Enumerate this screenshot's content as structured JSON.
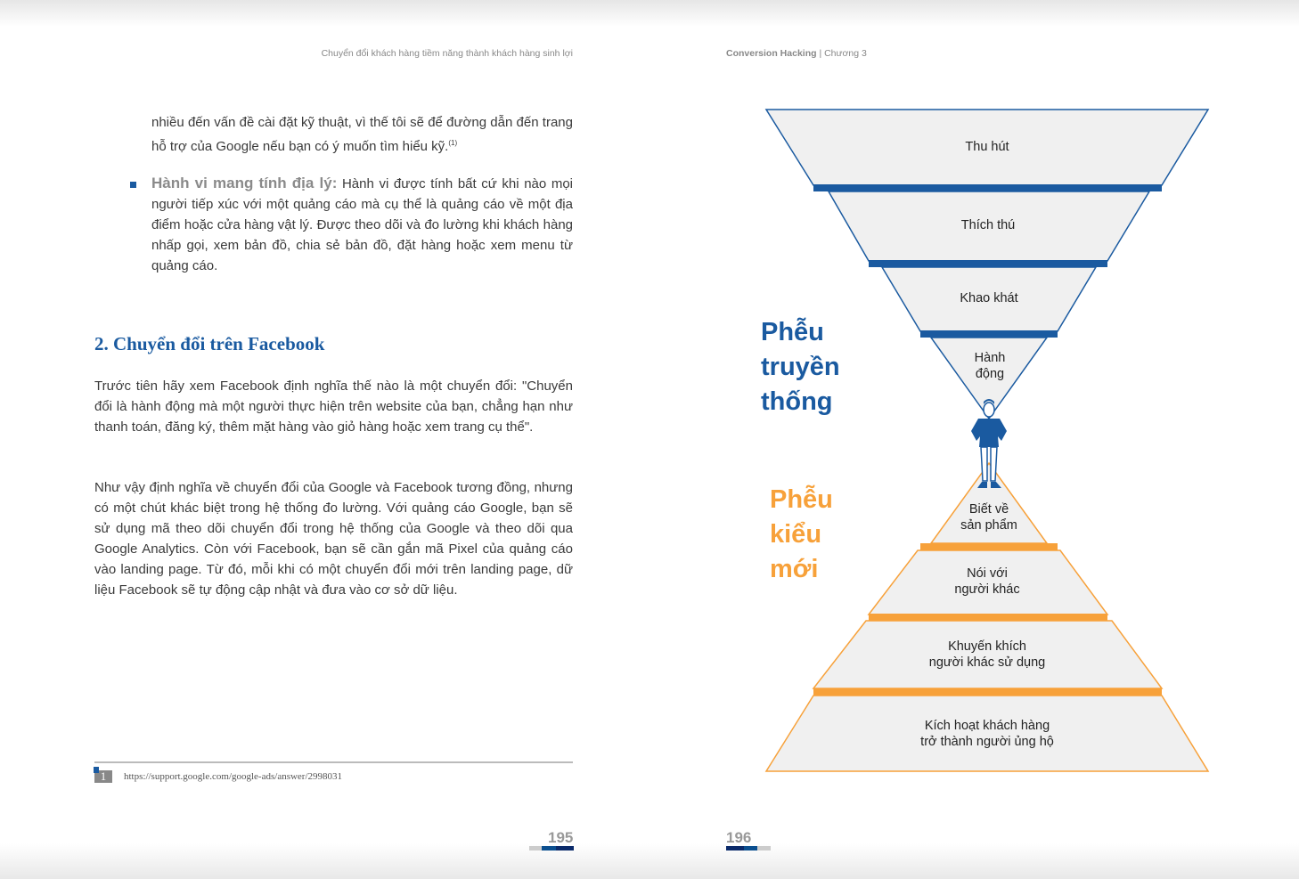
{
  "left_page": {
    "running_head": "Chuyển đổi khách hàng tiềm năng thành khách hàng sinh lợi",
    "para_intro": "nhiều đến vấn đề cài đặt kỹ thuật, vì thế tôi sẽ để đường dẫn đến trang hỗ trợ của Google nếu bạn có ý muốn tìm hiểu kỹ.",
    "footnote_ref": "(1)",
    "bullet_title": "Hành vi mang tính địa lý:",
    "bullet_text": " Hành vi được tính bất cứ khi nào mọi người tiếp xúc với một quảng cáo mà cụ thể là quảng cáo về một địa điểm hoặc cửa hàng vật lý. Được theo dõi và đo lường khi khách hàng nhấp gọi, xem bản đồ, chia sẻ bản đồ, đặt hàng hoặc xem menu từ quảng cáo.",
    "heading": "2. Chuyển đổi trên Facebook",
    "para1": "Trước tiên hãy xem Facebook định nghĩa thế nào là một chuyển đổi: \"Chuyển đổi là hành động mà một người thực hiện trên website của bạn, chẳng hạn như thanh toán, đăng ký, thêm mặt hàng vào giỏ hàng hoặc xem trang cụ thể\".",
    "para2": "Như vậy định nghĩa về chuyển đổi của Google và Facebook tương đồng, nhưng có một chút khác biệt trong hệ thống đo lường. Với quảng cáo Google, bạn sẽ sử dụng mã theo dõi chuyển đổi trong hệ thống của Google và theo dõi qua Google Analytics. Còn với Facebook, bạn sẽ cần gắn mã Pixel của quảng cáo vào landing page. Từ đó, mỗi khi có một chuyển đổi mới trên landing page, dữ liệu Facebook sẽ tự động cập nhật và đưa vào cơ sở dữ liệu.",
    "footnote_number": "1",
    "footnote_text": "https://support.google.com/google-ads/answer/2998031",
    "page_number": "195"
  },
  "right_page": {
    "running_head_bold": "Conversion Hacking",
    "running_head_rest": " | Chương 3",
    "traditional_title": [
      "Phễu",
      "truyền",
      "thống"
    ],
    "new_title": [
      "Phễu",
      "kiểu",
      "mới"
    ],
    "traditional_stages": [
      [
        "Thu hút"
      ],
      [
        "Thích thú"
      ],
      [
        "Khao khát"
      ],
      [
        "Hành",
        "động"
      ]
    ],
    "new_stages": [
      [
        "Biết về",
        "sản phẩm"
      ],
      [
        "Nói với",
        "người khác"
      ],
      [
        "Khuyến khích",
        "người khác sử dụng"
      ],
      [
        "Kích hoạt khách hàng",
        "trở thành người ủng hộ"
      ]
    ],
    "page_number": "196"
  },
  "colors": {
    "blue": "#1a5aa0",
    "orange": "#f7a13a",
    "fill": "#f0f0f0"
  },
  "icons": {
    "figure": "person-standing-icon"
  }
}
